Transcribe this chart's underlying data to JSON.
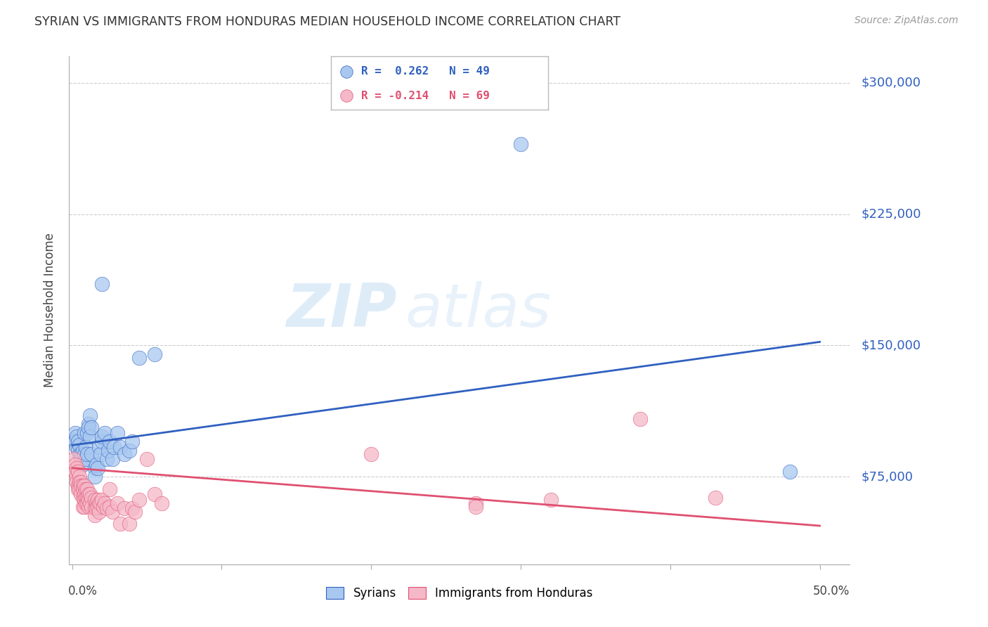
{
  "title": "SYRIAN VS IMMIGRANTS FROM HONDURAS MEDIAN HOUSEHOLD INCOME CORRELATION CHART",
  "source": "Source: ZipAtlas.com",
  "ylabel": "Median Household Income",
  "yticks": [
    75000,
    150000,
    225000,
    300000
  ],
  "ytick_labels": [
    "$75,000",
    "$150,000",
    "$225,000",
    "$300,000"
  ],
  "ymin": 25000,
  "ymax": 315000,
  "xmin": -0.002,
  "xmax": 0.52,
  "watermark_zip": "ZIP",
  "watermark_atlas": "atlas",
  "blue_color": "#A8C8F0",
  "pink_color": "#F5B8C8",
  "line_blue": "#3060C0",
  "line_pink": "#E05070",
  "blue_scatter": [
    [
      0.001,
      96000
    ],
    [
      0.002,
      100000
    ],
    [
      0.002,
      95000
    ],
    [
      0.003,
      92000
    ],
    [
      0.003,
      98000
    ],
    [
      0.004,
      90000
    ],
    [
      0.004,
      95000
    ],
    [
      0.005,
      88000
    ],
    [
      0.005,
      93000
    ],
    [
      0.006,
      88000
    ],
    [
      0.006,
      85000
    ],
    [
      0.007,
      82000
    ],
    [
      0.007,
      90000
    ],
    [
      0.008,
      88000
    ],
    [
      0.008,
      100000
    ],
    [
      0.009,
      85000
    ],
    [
      0.009,
      92000
    ],
    [
      0.01,
      100000
    ],
    [
      0.01,
      88000
    ],
    [
      0.011,
      105000
    ],
    [
      0.011,
      103000
    ],
    [
      0.012,
      110000
    ],
    [
      0.012,
      98000
    ],
    [
      0.013,
      103000
    ],
    [
      0.013,
      88000
    ],
    [
      0.015,
      80000
    ],
    [
      0.015,
      75000
    ],
    [
      0.016,
      82000
    ],
    [
      0.017,
      80000
    ],
    [
      0.018,
      92000
    ],
    [
      0.019,
      88000
    ],
    [
      0.02,
      95000
    ],
    [
      0.02,
      98000
    ],
    [
      0.022,
      100000
    ],
    [
      0.023,
      85000
    ],
    [
      0.024,
      90000
    ],
    [
      0.025,
      95000
    ],
    [
      0.027,
      85000
    ],
    [
      0.028,
      92000
    ],
    [
      0.03,
      100000
    ],
    [
      0.032,
      92000
    ],
    [
      0.035,
      88000
    ],
    [
      0.038,
      90000
    ],
    [
      0.04,
      95000
    ],
    [
      0.045,
      143000
    ],
    [
      0.3,
      265000
    ],
    [
      0.48,
      78000
    ],
    [
      0.02,
      185000
    ],
    [
      0.055,
      145000
    ]
  ],
  "pink_scatter": [
    [
      0.001,
      85000
    ],
    [
      0.002,
      82000
    ],
    [
      0.002,
      78000
    ],
    [
      0.003,
      80000
    ],
    [
      0.003,
      75000
    ],
    [
      0.003,
      72000
    ],
    [
      0.004,
      78000
    ],
    [
      0.004,
      70000
    ],
    [
      0.004,
      68000
    ],
    [
      0.005,
      75000
    ],
    [
      0.005,
      72000
    ],
    [
      0.005,
      68000
    ],
    [
      0.006,
      72000
    ],
    [
      0.006,
      70000
    ],
    [
      0.006,
      65000
    ],
    [
      0.007,
      70000
    ],
    [
      0.007,
      68000
    ],
    [
      0.007,
      63000
    ],
    [
      0.007,
      58000
    ],
    [
      0.008,
      70000
    ],
    [
      0.008,
      65000
    ],
    [
      0.008,
      62000
    ],
    [
      0.008,
      58000
    ],
    [
      0.009,
      68000
    ],
    [
      0.009,
      63000
    ],
    [
      0.009,
      60000
    ],
    [
      0.01,
      68000
    ],
    [
      0.01,
      63000
    ],
    [
      0.01,
      60000
    ],
    [
      0.011,
      65000
    ],
    [
      0.011,
      62000
    ],
    [
      0.011,
      58000
    ],
    [
      0.012,
      65000
    ],
    [
      0.012,
      60000
    ],
    [
      0.013,
      63000
    ],
    [
      0.013,
      58000
    ],
    [
      0.015,
      62000
    ],
    [
      0.015,
      57000
    ],
    [
      0.015,
      53000
    ],
    [
      0.016,
      60000
    ],
    [
      0.016,
      57000
    ],
    [
      0.017,
      62000
    ],
    [
      0.017,
      58000
    ],
    [
      0.018,
      60000
    ],
    [
      0.018,
      55000
    ],
    [
      0.019,
      60000
    ],
    [
      0.02,
      62000
    ],
    [
      0.021,
      58000
    ],
    [
      0.022,
      60000
    ],
    [
      0.023,
      57000
    ],
    [
      0.025,
      68000
    ],
    [
      0.025,
      58000
    ],
    [
      0.027,
      55000
    ],
    [
      0.03,
      60000
    ],
    [
      0.032,
      48000
    ],
    [
      0.035,
      57000
    ],
    [
      0.038,
      48000
    ],
    [
      0.04,
      57000
    ],
    [
      0.042,
      55000
    ],
    [
      0.045,
      62000
    ],
    [
      0.05,
      85000
    ],
    [
      0.055,
      65000
    ],
    [
      0.06,
      60000
    ],
    [
      0.2,
      88000
    ],
    [
      0.27,
      60000
    ],
    [
      0.27,
      58000
    ],
    [
      0.32,
      62000
    ],
    [
      0.38,
      108000
    ],
    [
      0.43,
      63000
    ]
  ],
  "blue_line_x": [
    0.0,
    0.5
  ],
  "blue_line_y": [
    93000,
    152000
  ],
  "pink_line_x": [
    0.0,
    0.5
  ],
  "pink_line_y": [
    80000,
    47000
  ],
  "legend_blue_text": "R =  0.262   N = 49",
  "legend_pink_text": "R = -0.214   N = 69",
  "bottom_legend_blue": "Syrians",
  "bottom_legend_pink": "Immigrants from Honduras"
}
